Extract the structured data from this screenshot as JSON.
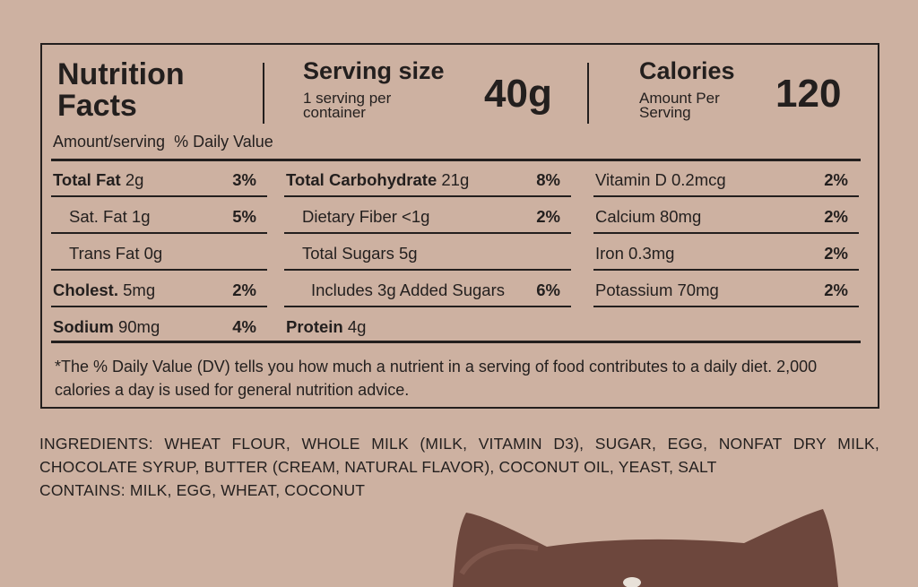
{
  "header": {
    "title": "Nutrition Facts",
    "serving_size_label": "Serving size",
    "servings_per_container": "1 serving per container",
    "serving_size": "40g",
    "calories_label": "Calories",
    "calories_note": "Amount Per Serving",
    "calories": "120"
  },
  "column_header": {
    "amount": "Amount/serving",
    "daily_value": "% Daily Value"
  },
  "columns": [
    {
      "rows": [
        {
          "name": "Total Fat",
          "amount": "2g",
          "dv": "3%"
        },
        {
          "name": "Sat. Fat",
          "amount": "1g",
          "dv": "5%"
        },
        {
          "name": "Trans Fat",
          "amount": "0g"
        },
        {
          "name": "Cholest.",
          "amount": "5mg",
          "dv": "2%"
        },
        {
          "name": "Sodium",
          "amount": "90mg",
          "dv": "4%"
        }
      ]
    },
    {
      "rows": [
        {
          "name": "Total Carbohydrate",
          "amount": "21g",
          "dv": "8%"
        },
        {
          "name": "Dietary Fiber",
          "amount": "<1g",
          "dv": "2%"
        },
        {
          "name": "Total Sugars",
          "amount": "5g"
        },
        {
          "name": "Includes 3g Added Sugars",
          "dv": "6%"
        },
        {
          "name": "Protein",
          "amount": "4g"
        }
      ]
    },
    {
      "rows": [
        {
          "name": "Vitamin D",
          "amount": "0.2mcg",
          "dv": "2%"
        },
        {
          "name": "Calcium",
          "amount": "80mg",
          "dv": "2%"
        },
        {
          "name": "Iron",
          "amount": "0.3mg",
          "dv": "2%"
        },
        {
          "name": "Potassium",
          "amount": "70mg",
          "dv": "2%"
        }
      ]
    }
  ],
  "footnote": "*The % Daily Value (DV) tells you how much a nutrient in a serving of food contributes to a daily diet. 2,000 calories a day is used for general nutrition advice.",
  "ingredients": "INGREDIENTS: WHEAT FLOUR, WHOLE MILK (MILK, VITAMIN D3), SUGAR, EGG, NONFAT DRY MILK, CHOCOLATE SYRUP, BUTTER (CREAM, NATURAL FLAVOR), COCONUT OIL, YEAST, SALT",
  "contains": "CONTAINS: MILK, EGG, WHEAT, COCONUT"
}
